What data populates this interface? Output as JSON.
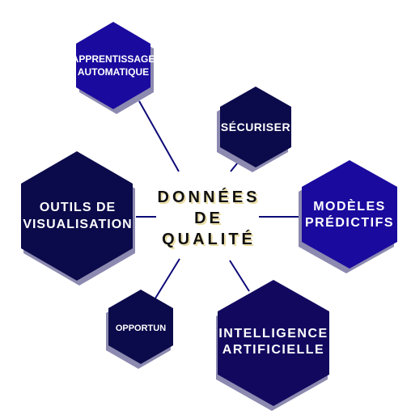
{
  "center": {
    "text": "DONNÉES\nDE\nQUALITÉ"
  },
  "nodes": {
    "apprentissage": {
      "text": "APPRENTISSAGE\nAUTOMATIQUE",
      "color": "#1a0a9e"
    },
    "securiser": {
      "text": "SÉCURISER",
      "color": "#0b0a4a"
    },
    "modeles": {
      "text": "MODÈLES\nPRÉDICTIFS",
      "color": "#1a0a9e"
    },
    "intelligence": {
      "text": "INTELLIGENCE\nARTIFICIELLE",
      "color": "#12095f"
    },
    "opportun": {
      "text": "OPPORTUN",
      "color": "#0b0a4a"
    },
    "outils": {
      "text": "OUTILS DE\nVISUALISATION",
      "color": "#0b0a4a"
    }
  },
  "colors": {
    "line": "#0d0a78",
    "shadow": "#8c8ab0"
  }
}
